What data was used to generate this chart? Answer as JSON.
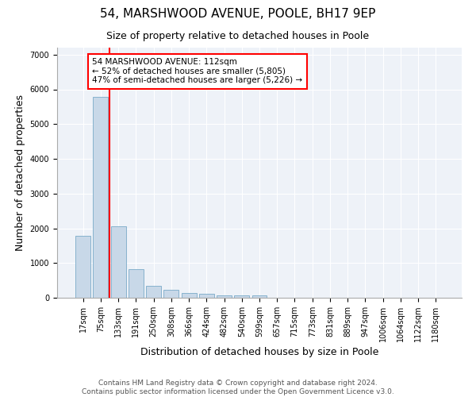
{
  "title1": "54, MARSHWOOD AVENUE, POOLE, BH17 9EP",
  "title2": "Size of property relative to detached houses in Poole",
  "xlabel": "Distribution of detached houses by size in Poole",
  "ylabel": "Number of detached properties",
  "bar_labels": [
    "17sqm",
    "75sqm",
    "133sqm",
    "191sqm",
    "250sqm",
    "308sqm",
    "366sqm",
    "424sqm",
    "482sqm",
    "540sqm",
    "599sqm",
    "657sqm",
    "715sqm",
    "773sqm",
    "831sqm",
    "889sqm",
    "947sqm",
    "1006sqm",
    "1064sqm",
    "1122sqm",
    "1180sqm"
  ],
  "bar_values": [
    1780,
    5790,
    2060,
    820,
    345,
    225,
    135,
    105,
    75,
    65,
    65,
    0,
    0,
    0,
    0,
    0,
    0,
    0,
    0,
    0,
    0
  ],
  "bar_color": "#c8d8e8",
  "bar_edgecolor": "#7aaac8",
  "annotation_text": "54 MARSHWOOD AVENUE: 112sqm\n← 52% of detached houses are smaller (5,805)\n47% of semi-detached houses are larger (5,226) →",
  "annotation_box_color": "white",
  "annotation_box_edgecolor": "red",
  "vline_color": "red",
  "ylim": [
    0,
    7200
  ],
  "yticks": [
    0,
    1000,
    2000,
    3000,
    4000,
    5000,
    6000,
    7000
  ],
  "background_color": "#eef2f8",
  "grid_color": "white",
  "footer1": "Contains HM Land Registry data © Crown copyright and database right 2024.",
  "footer2": "Contains public sector information licensed under the Open Government Licence v3.0.",
  "title1_fontsize": 11,
  "title2_fontsize": 9,
  "axis_label_fontsize": 9,
  "tick_fontsize": 7,
  "annotation_fontsize": 7.5,
  "footer_fontsize": 6.5
}
